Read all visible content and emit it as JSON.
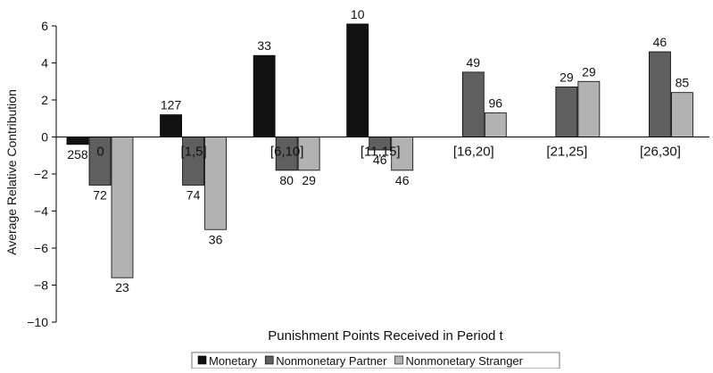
{
  "chart_data": {
    "type": "bar",
    "title": "",
    "xlabel": "Punishment Points Received in Period t",
    "ylabel": "Average Relative Contribution",
    "ylim": [
      -10,
      6
    ],
    "yticks": [
      6,
      4,
      2,
      0,
      -2,
      -4,
      -6,
      -8,
      -10
    ],
    "ytick_labels": [
      "6",
      "4",
      "2",
      "0",
      "−2",
      "−4",
      "−6",
      "−8",
      "−10"
    ],
    "grid": false,
    "legend_position": "bottom-center",
    "categories": [
      "0",
      "[1,5]",
      "[6,10]",
      "[11,15]",
      "[16,20]",
      "[21,25]",
      "[26,30]"
    ],
    "series": [
      {
        "name": "Monetary",
        "color": "#111111",
        "values": [
          -0.4,
          1.2,
          4.4,
          6.1,
          null,
          null,
          null
        ],
        "labels": [
          "258",
          "127",
          "33",
          "10",
          null,
          null,
          null
        ]
      },
      {
        "name": "Nonmonetary Partner",
        "color": "#5f5f5f",
        "values": [
          -2.6,
          -2.6,
          -1.8,
          -0.7,
          3.5,
          2.7,
          4.6
        ],
        "labels": [
          "72",
          "74",
          "80",
          "46",
          "49",
          "29",
          "46"
        ]
      },
      {
        "name": "Nonmonetary Stranger",
        "color": "#b2b2b2",
        "values": [
          -7.6,
          -5.0,
          -1.8,
          -1.8,
          1.3,
          3.0,
          2.4
        ],
        "labels": [
          "23",
          "36",
          "29",
          "46",
          "96",
          "29",
          "85"
        ]
      }
    ]
  }
}
